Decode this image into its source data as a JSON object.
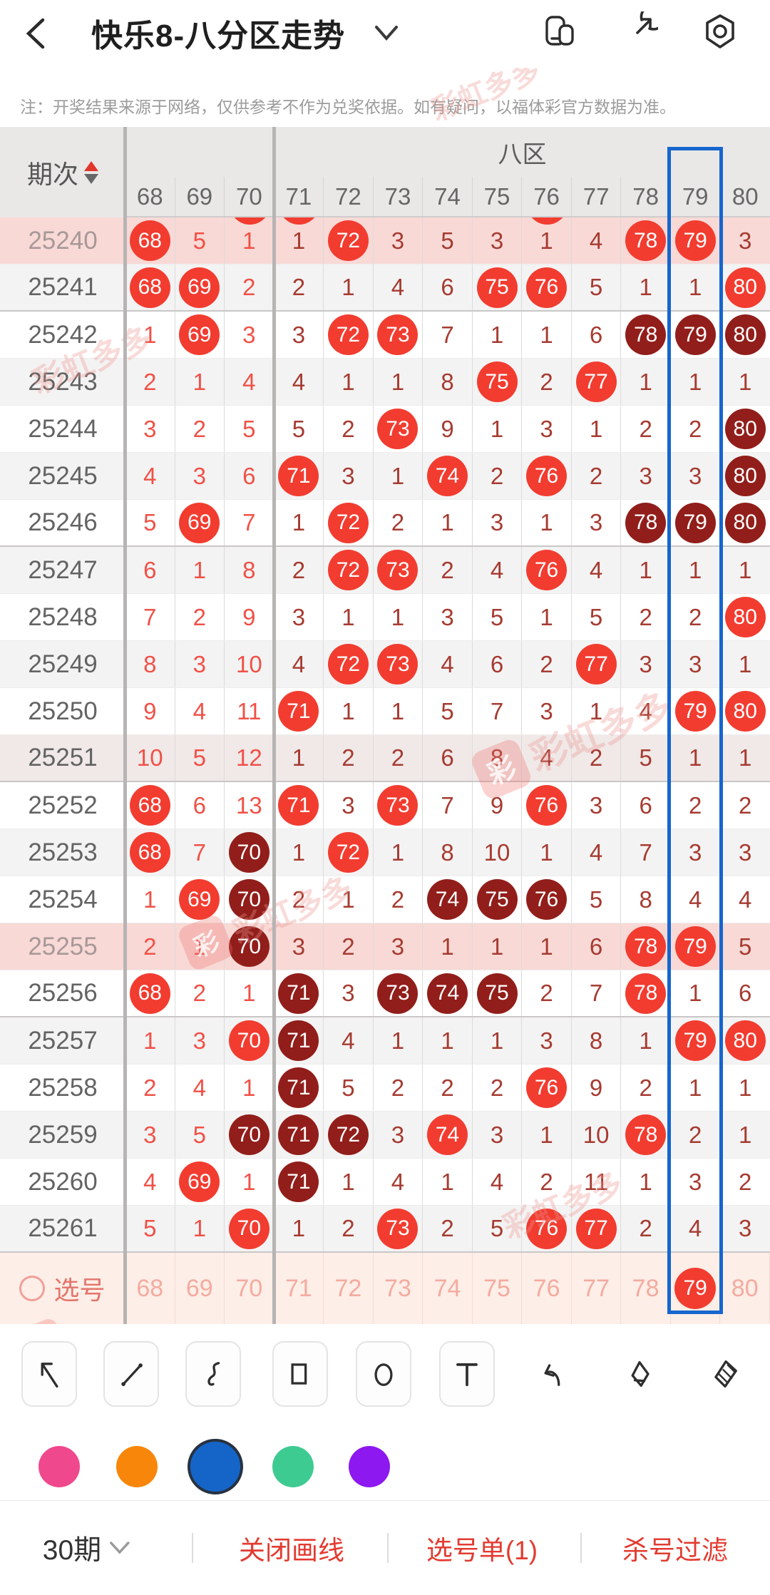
{
  "appbar": {
    "title": "快乐8-八分区走势",
    "icons": [
      "back-icon",
      "dropdown-icon",
      "compare-icon",
      "share-icon",
      "settings-icon"
    ]
  },
  "notice": "注：开奖结果来源于网络，仅供参考不作为兑奖依据。如有疑问，以福体彩官方数据为准。",
  "watermark": "彩虹多多",
  "table": {
    "period_label": "期次",
    "group_label": "八区",
    "columns": [
      "68",
      "69",
      "70",
      "71",
      "72",
      "73",
      "74",
      "75",
      "76",
      "77",
      "78",
      "79",
      "80"
    ],
    "clipped_circles": [
      "70",
      "71",
      "76"
    ],
    "legend": {
      "circle_bright": "#f23c30",
      "circle_dark": "#911e1a",
      "miss_left_zone": "#f05147",
      "miss_main_zone": "#a63b31"
    },
    "rows": [
      {
        "period": "25240",
        "bg": "pink",
        "cells": [
          "68b",
          "5",
          "1",
          "1",
          "72b",
          "3",
          "5",
          "3",
          "1",
          "4",
          "78b",
          "79b",
          "3"
        ]
      },
      {
        "period": "25241",
        "bg": "",
        "cells": [
          "68b",
          "69b",
          "2",
          "2",
          "1",
          "4",
          "6",
          "75b",
          "76b",
          "5",
          "1",
          "1",
          "80b"
        ]
      },
      {
        "period": "25242",
        "bg": "",
        "cells": [
          "1",
          "69b",
          "3",
          "3",
          "72b",
          "73b",
          "7",
          "1",
          "1",
          "6",
          "78d",
          "79d",
          "80d"
        ]
      },
      {
        "period": "25243",
        "bg": "",
        "cells": [
          "2",
          "1",
          "4",
          "4",
          "1",
          "1",
          "8",
          "75b",
          "2",
          "77b",
          "1",
          "1",
          "1"
        ]
      },
      {
        "period": "25244",
        "bg": "",
        "cells": [
          "3",
          "2",
          "5",
          "5",
          "2",
          "73b",
          "9",
          "1",
          "3",
          "1",
          "2",
          "2",
          "80d"
        ]
      },
      {
        "period": "25245",
        "bg": "",
        "cells": [
          "4",
          "3",
          "6",
          "71b",
          "3",
          "1",
          "74b",
          "2",
          "76b",
          "2",
          "3",
          "3",
          "80d"
        ]
      },
      {
        "period": "25246",
        "bg": "",
        "cells": [
          "5",
          "69b",
          "7",
          "1",
          "72b",
          "2",
          "1",
          "3",
          "1",
          "3",
          "78d",
          "79d",
          "80d"
        ]
      },
      {
        "period": "25247",
        "bg": "",
        "cells": [
          "6",
          "1",
          "8",
          "2",
          "72b",
          "73b",
          "2",
          "4",
          "76b",
          "4",
          "1",
          "1",
          "1"
        ]
      },
      {
        "period": "25248",
        "bg": "",
        "cells": [
          "7",
          "2",
          "9",
          "3",
          "1",
          "1",
          "3",
          "5",
          "1",
          "5",
          "2",
          "2",
          "80b"
        ]
      },
      {
        "period": "25249",
        "bg": "",
        "cells": [
          "8",
          "3",
          "10",
          "4",
          "72b",
          "73b",
          "4",
          "6",
          "2",
          "77b",
          "3",
          "3",
          "1"
        ]
      },
      {
        "period": "25250",
        "bg": "",
        "cells": [
          "9",
          "4",
          "11",
          "71b",
          "1",
          "1",
          "5",
          "7",
          "3",
          "1",
          "4",
          "79b",
          "80b"
        ]
      },
      {
        "period": "25251",
        "bg": "mauve",
        "cells": [
          "10",
          "5",
          "12",
          "1",
          "2",
          "2",
          "6",
          "8",
          "4",
          "2",
          "5",
          "1",
          "1"
        ]
      },
      {
        "period": "25252",
        "bg": "",
        "cells": [
          "68b",
          "6",
          "13",
          "71b",
          "3",
          "73b",
          "7",
          "9",
          "76b",
          "3",
          "6",
          "2",
          "2"
        ]
      },
      {
        "period": "25253",
        "bg": "",
        "cells": [
          "68b",
          "7",
          "70d",
          "1",
          "72b",
          "1",
          "8",
          "10",
          "1",
          "4",
          "7",
          "3",
          "3"
        ]
      },
      {
        "period": "25254",
        "bg": "",
        "cells": [
          "1",
          "69b",
          "70d",
          "2",
          "1",
          "2",
          "74d",
          "75d",
          "76d",
          "5",
          "8",
          "4",
          "4"
        ]
      },
      {
        "period": "25255",
        "bg": "pink",
        "cells": [
          "2",
          "1",
          "70d",
          "3",
          "2",
          "3",
          "1",
          "1",
          "1",
          "6",
          "78b",
          "79b",
          "5"
        ]
      },
      {
        "period": "25256",
        "bg": "",
        "cells": [
          "68b",
          "2",
          "1",
          "71d",
          "3",
          "73d",
          "74d",
          "75d",
          "2",
          "7",
          "78b",
          "1",
          "6"
        ]
      },
      {
        "period": "25257",
        "bg": "",
        "cells": [
          "1",
          "3",
          "70b",
          "71d",
          "4",
          "1",
          "1",
          "1",
          "3",
          "8",
          "1",
          "79b",
          "80b"
        ]
      },
      {
        "period": "25258",
        "bg": "",
        "cells": [
          "2",
          "4",
          "1",
          "71d",
          "5",
          "2",
          "2",
          "2",
          "76b",
          "9",
          "2",
          "1",
          "1"
        ]
      },
      {
        "period": "25259",
        "bg": "",
        "cells": [
          "3",
          "5",
          "70d",
          "71d",
          "72d",
          "3",
          "74b",
          "3",
          "1",
          "10",
          "78b",
          "2",
          "1"
        ]
      },
      {
        "period": "25260",
        "bg": "",
        "cells": [
          "4",
          "69b",
          "1",
          "71d",
          "1",
          "4",
          "1",
          "4",
          "2",
          "11",
          "1",
          "3",
          "2"
        ]
      },
      {
        "period": "25261",
        "bg": "",
        "cells": [
          "5",
          "1",
          "70b",
          "1",
          "2",
          "73b",
          "2",
          "5",
          "76b",
          "77b",
          "2",
          "4",
          "3"
        ]
      }
    ],
    "select_row": {
      "label": "选号",
      "values": [
        "68",
        "69",
        "70",
        "71",
        "72",
        "73",
        "74",
        "75",
        "76",
        "77",
        "78",
        "79",
        "80"
      ],
      "selected": [
        "79"
      ]
    }
  },
  "annotation": {
    "boxed_column": "79",
    "color": "#1666cd"
  },
  "toolbar": {
    "tools": [
      {
        "name": "arrow-tool",
        "icon": "arrow-nw-icon",
        "boxed": true
      },
      {
        "name": "line-tool",
        "icon": "line-icon",
        "boxed": true
      },
      {
        "name": "curve-tool",
        "icon": "squiggle-icon",
        "boxed": true
      },
      {
        "name": "rect-tool",
        "icon": "rectangle-icon",
        "boxed": true
      },
      {
        "name": "ellipse-tool",
        "icon": "circle-icon",
        "boxed": true
      },
      {
        "name": "text-tool",
        "icon": "text-t-icon",
        "boxed": true
      },
      {
        "name": "undo-button",
        "icon": "undo-icon",
        "boxed": false
      },
      {
        "name": "eraser-button",
        "icon": "eraser-icon",
        "boxed": false
      },
      {
        "name": "clear-button",
        "icon": "clear-eraser-icon",
        "boxed": false
      }
    ]
  },
  "palette": {
    "colors": [
      "#f0488d",
      "#f8860b",
      "#1565c8",
      "#3ecb92",
      "#8d18f0"
    ],
    "selected_index": 2
  },
  "bottom_bar": {
    "periods": "30期",
    "close_draw": "关闭画线",
    "ticket": "选号单(1)",
    "filter": "杀号过滤"
  }
}
